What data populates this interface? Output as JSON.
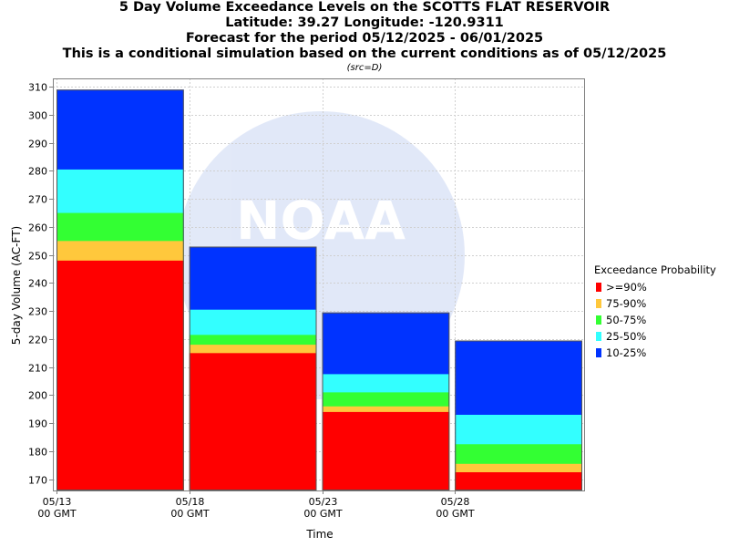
{
  "chart_data": {
    "type": "bar",
    "title_lines": [
      "5 Day Volume Exceedance Levels on the SCOTTS FLAT RESERVOIR",
      "Latitude: 39.27 Longitude: -120.9311",
      "Forecast for the period 05/12/2025 - 06/01/2025",
      "This is a conditional simulation based on the current conditions as of 05/12/2025"
    ],
    "subtitle": "(src=D)",
    "xlabel": "Time",
    "ylabel": "5-day Volume (AC-FT)",
    "ylim": [
      166,
      313
    ],
    "yticks": [
      170,
      180,
      190,
      200,
      210,
      220,
      230,
      240,
      250,
      260,
      270,
      280,
      290,
      300,
      310
    ],
    "xticks": [
      {
        "line1": "05/13",
        "line2": "00 GMT"
      },
      {
        "line1": "05/18",
        "line2": "00 GMT"
      },
      {
        "line1": "05/23",
        "line2": "00 GMT"
      },
      {
        "line1": "05/28",
        "line2": "00 GMT"
      }
    ],
    "categories": [
      "05/13",
      "05/18",
      "05/23",
      "05/28"
    ],
    "legend_title": "Exceedance Probability",
    "legend_placement": "right",
    "grid": true,
    "watermark": "NOAA",
    "series": [
      {
        "name": ">=90%",
        "color": "#ff0000",
        "values": [
          248,
          215,
          194,
          172.5
        ]
      },
      {
        "name": "75-90%",
        "color": "#ffc83c",
        "values": [
          255,
          218,
          196,
          175.5
        ]
      },
      {
        "name": "50-75%",
        "color": "#33ff33",
        "values": [
          265,
          221.5,
          201,
          182.5
        ]
      },
      {
        "name": "25-50%",
        "color": "#33ffff",
        "values": [
          280.5,
          230.5,
          207.5,
          193
        ]
      },
      {
        "name": "10-25%",
        "color": "#0033ff",
        "values": [
          309,
          253,
          229.5,
          219.5
        ]
      }
    ]
  }
}
